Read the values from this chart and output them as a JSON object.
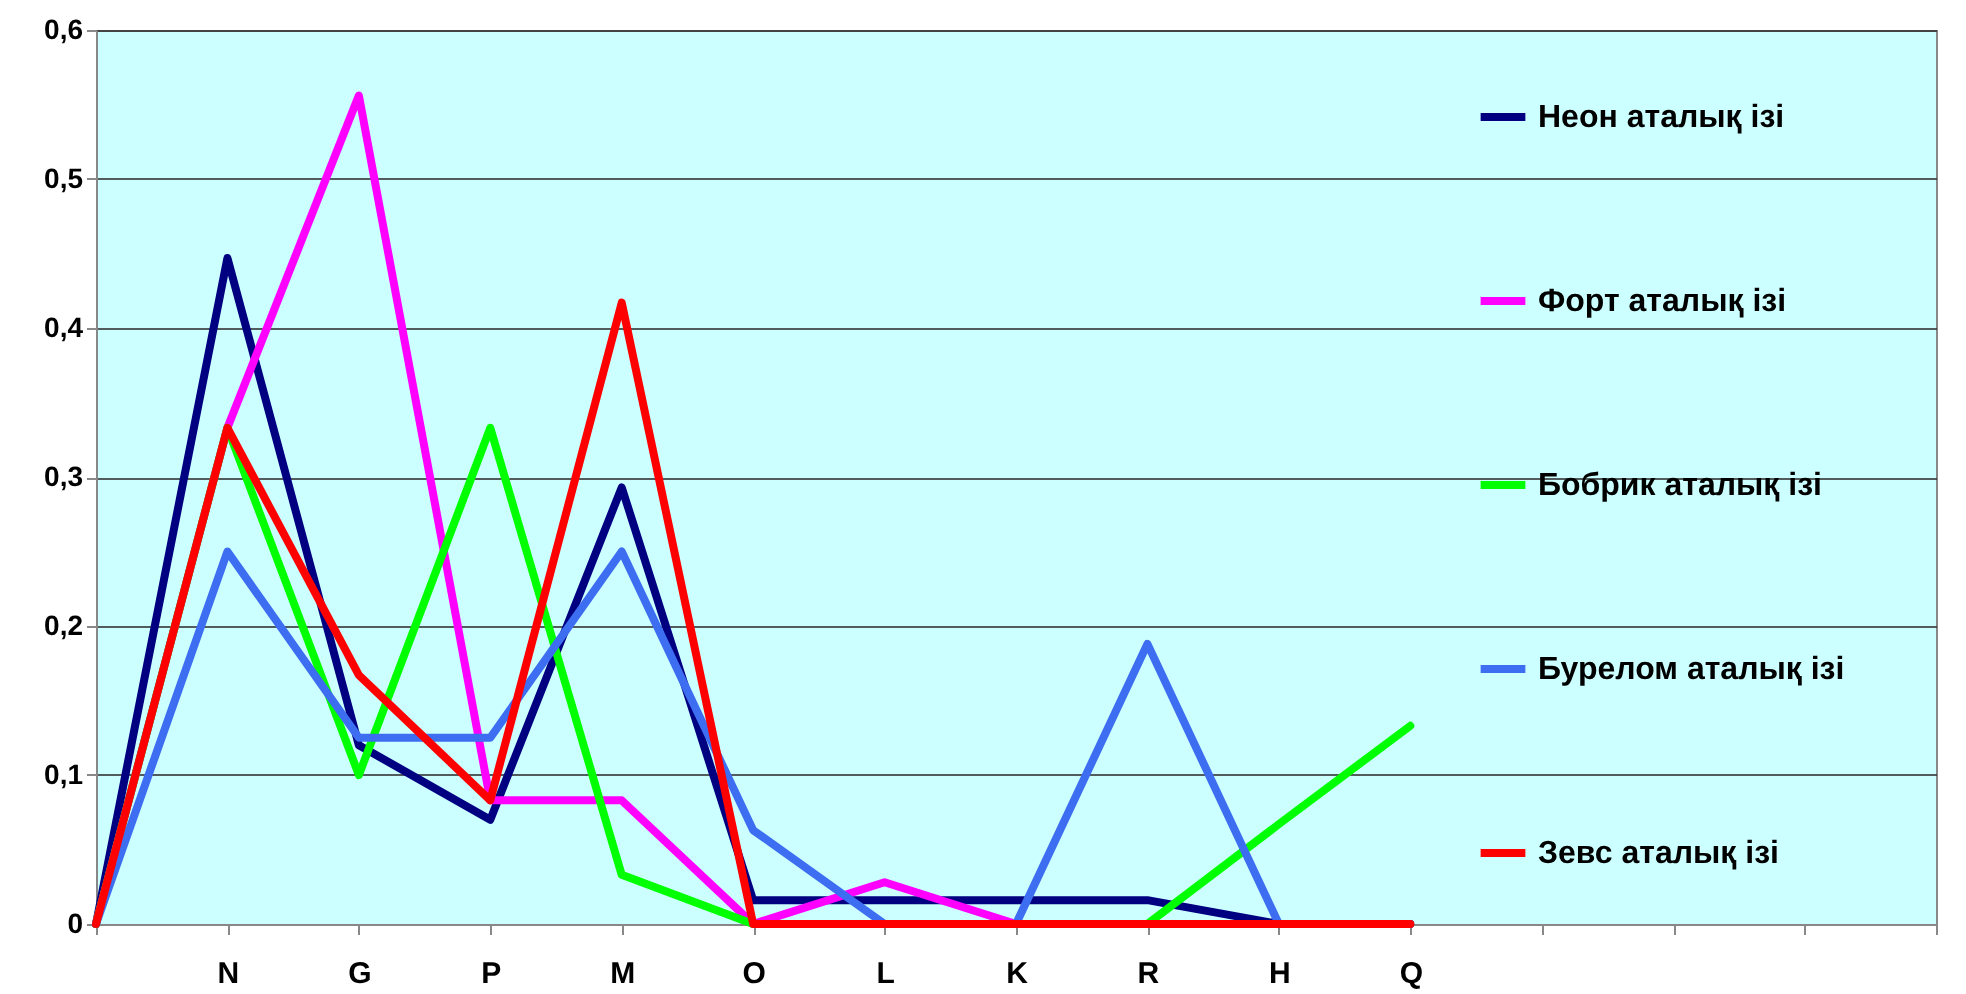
{
  "chart_data": {
    "type": "line",
    "categories": [
      null,
      "N",
      "G",
      "P",
      "M",
      "O",
      "L",
      "K",
      "R",
      "H",
      "Q",
      null,
      null,
      null,
      null
    ],
    "series": [
      {
        "name": "Неон аталық ізі",
        "color": "#000080",
        "values": [
          0,
          0.447,
          0.12,
          0.07,
          0.293,
          0.016,
          0.016,
          0.016,
          0.016,
          0,
          0,
          null,
          null,
          null,
          null
        ]
      },
      {
        "name": "Форт аталық ізі",
        "color": "#ff00ff",
        "values": [
          0,
          0.333,
          0.556,
          0.083,
          0.083,
          0,
          0.028,
          0,
          0,
          null,
          null,
          null,
          null,
          null,
          null
        ]
      },
      {
        "name": "Бобрик аталық ізі",
        "color": "#00ff00",
        "values": [
          0,
          0.333,
          0.1,
          0.333,
          0.033,
          0,
          0,
          0,
          0,
          0.067,
          0.133,
          null,
          null,
          null,
          null
        ]
      },
      {
        "name": "Бурелом аталық ізі",
        "color": "#3d6df0",
        "values": [
          0,
          0.25,
          0.125,
          0.125,
          0.25,
          0.063,
          0,
          0,
          0.188,
          0,
          null,
          null,
          null,
          null,
          null
        ]
      },
      {
        "name": "Зевс аталық ізі",
        "color": "#ff0000",
        "values": [
          0,
          0.333,
          0.167,
          0.083,
          0.417,
          0,
          0,
          0,
          0,
          0,
          0,
          null,
          null,
          null,
          null
        ]
      }
    ],
    "ylim": [
      0,
      0.6
    ],
    "yticks": [
      {
        "value": 0,
        "label": "0"
      },
      {
        "value": 0.1,
        "label": "0,1"
      },
      {
        "value": 0.2,
        "label": "0,2"
      },
      {
        "value": 0.3,
        "label": "0,3"
      },
      {
        "value": 0.4,
        "label": "0,4"
      },
      {
        "value": 0.5,
        "label": "0,5"
      },
      {
        "value": 0.6,
        "label": "0,6"
      }
    ],
    "grid": "y",
    "legend": "right",
    "marker": "none",
    "line_style": "solid"
  }
}
